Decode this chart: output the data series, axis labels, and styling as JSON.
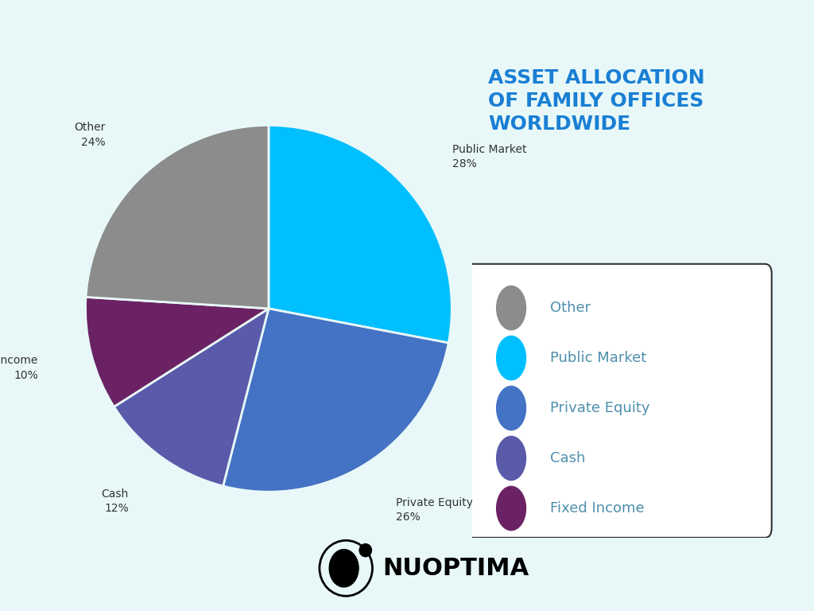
{
  "title_lines": [
    "ASSET ALLOCATION",
    "OF FAMILY OFFICES",
    "WORLDWIDE"
  ],
  "title_color": "#1a7fd4",
  "background_color": "#e8f8f8",
  "slices": [
    {
      "label": "Public Market",
      "value": 28,
      "color": "#00bfff"
    },
    {
      "label": "Private Equity",
      "value": 26,
      "color": "#4472c4"
    },
    {
      "label": "Cash",
      "value": 12,
      "color": "#5a5aaa"
    },
    {
      "label": "Fixed Income",
      "value": 10,
      "color": "#6b2264"
    },
    {
      "label": "Other",
      "value": 24,
      "color": "#8c8c8c"
    }
  ],
  "legend_order": [
    "Other",
    "Public Market",
    "Private Equity",
    "Cash",
    "Fixed Income"
  ],
  "legend_colors": {
    "Other": "#8c8c8c",
    "Public Market": "#00bfff",
    "Private Equity": "#4472c4",
    "Cash": "#5a5aaa",
    "Fixed Income": "#6b2264"
  },
  "label_color": "#333333",
  "legend_text_color": "#4d8fac",
  "nuoptima_text": "NUOPTIMA"
}
